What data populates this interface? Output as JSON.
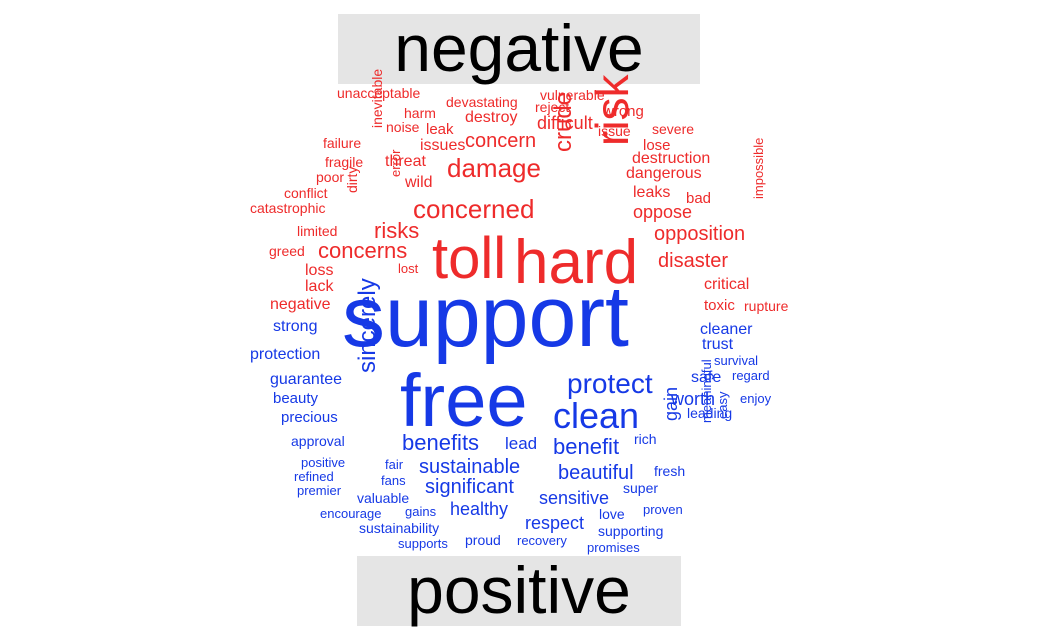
{
  "chart_data": {
    "type": "wordcloud",
    "colors": {
      "negative": "#ee2b2b",
      "positive": "#1639e6"
    },
    "groups": [
      {
        "name": "negative",
        "words": [
          {
            "text": "hard",
            "weight": 62
          },
          {
            "text": "toll",
            "weight": 58
          },
          {
            "text": "risk",
            "weight": 46
          },
          {
            "text": "concerned",
            "weight": 26
          },
          {
            "text": "damage",
            "weight": 26
          },
          {
            "text": "crude",
            "weight": 24
          },
          {
            "text": "concerns",
            "weight": 22
          },
          {
            "text": "risks",
            "weight": 22
          },
          {
            "text": "concern",
            "weight": 20
          },
          {
            "text": "opposition",
            "weight": 20
          },
          {
            "text": "disaster",
            "weight": 20
          },
          {
            "text": "difficult",
            "weight": 18
          },
          {
            "text": "oppose",
            "weight": 18
          },
          {
            "text": "destruction",
            "weight": 16
          },
          {
            "text": "leaks",
            "weight": 16
          },
          {
            "text": "threat",
            "weight": 16
          },
          {
            "text": "wild",
            "weight": 16
          },
          {
            "text": "issues",
            "weight": 16
          },
          {
            "text": "destroy",
            "weight": 16
          },
          {
            "text": "dangerous",
            "weight": 16
          },
          {
            "text": "critical",
            "weight": 16
          },
          {
            "text": "negative",
            "weight": 16
          },
          {
            "text": "loss",
            "weight": 16
          },
          {
            "text": "lack",
            "weight": 16
          },
          {
            "text": "leak",
            "weight": 15
          },
          {
            "text": "lose",
            "weight": 15
          },
          {
            "text": "bad",
            "weight": 15
          },
          {
            "text": "wrong",
            "weight": 15
          },
          {
            "text": "toxic",
            "weight": 15
          },
          {
            "text": "inevitable",
            "weight": 14
          },
          {
            "text": "devastating",
            "weight": 14
          },
          {
            "text": "vulnerable",
            "weight": 14
          },
          {
            "text": "reject",
            "weight": 14
          },
          {
            "text": "issue",
            "weight": 14
          },
          {
            "text": "harm",
            "weight": 14
          },
          {
            "text": "noise",
            "weight": 14
          },
          {
            "text": "dirty",
            "weight": 14
          },
          {
            "text": "error",
            "weight": 13
          },
          {
            "text": "failure",
            "weight": 14
          },
          {
            "text": "fragile",
            "weight": 14
          },
          {
            "text": "poor",
            "weight": 14
          },
          {
            "text": "conflict",
            "weight": 14
          },
          {
            "text": "catastrophic",
            "weight": 14
          },
          {
            "text": "limited",
            "weight": 14
          },
          {
            "text": "greed",
            "weight": 14
          },
          {
            "text": "lost",
            "weight": 13
          },
          {
            "text": "unacceptable",
            "weight": 14
          },
          {
            "text": "severe",
            "weight": 14
          },
          {
            "text": "impossible",
            "weight": 13
          },
          {
            "text": "rupture",
            "weight": 14
          }
        ]
      },
      {
        "name": "positive",
        "words": [
          {
            "text": "support",
            "weight": 86
          },
          {
            "text": "free",
            "weight": 74
          },
          {
            "text": "clean",
            "weight": 36
          },
          {
            "text": "protect",
            "weight": 28
          },
          {
            "text": "sincerely",
            "weight": 24
          },
          {
            "text": "benefits",
            "weight": 22
          },
          {
            "text": "benefit",
            "weight": 22
          },
          {
            "text": "sustainable",
            "weight": 20
          },
          {
            "text": "significant",
            "weight": 20
          },
          {
            "text": "beautiful",
            "weight": 20
          },
          {
            "text": "gain",
            "weight": 18
          },
          {
            "text": "sensitive",
            "weight": 18
          },
          {
            "text": "healthy",
            "weight": 18
          },
          {
            "text": "respect",
            "weight": 18
          },
          {
            "text": "worth",
            "weight": 18
          },
          {
            "text": "lead",
            "weight": 17
          },
          {
            "text": "strong",
            "weight": 16
          },
          {
            "text": "protection",
            "weight": 16
          },
          {
            "text": "guarantee",
            "weight": 16
          },
          {
            "text": "beauty",
            "weight": 15
          },
          {
            "text": "precious",
            "weight": 15
          },
          {
            "text": "cleaner",
            "weight": 16
          },
          {
            "text": "trust",
            "weight": 16
          },
          {
            "text": "safe",
            "weight": 16
          },
          {
            "text": "leading",
            "weight": 14
          },
          {
            "text": "approval",
            "weight": 14
          },
          {
            "text": "rich",
            "weight": 14
          },
          {
            "text": "survival",
            "weight": 13
          },
          {
            "text": "regard",
            "weight": 13
          },
          {
            "text": "enjoy",
            "weight": 13
          },
          {
            "text": "meaningful",
            "weight": 13
          },
          {
            "text": "easy",
            "weight": 13
          },
          {
            "text": "positive",
            "weight": 13
          },
          {
            "text": "refined",
            "weight": 13
          },
          {
            "text": "premier",
            "weight": 13
          },
          {
            "text": "fair",
            "weight": 13
          },
          {
            "text": "fans",
            "weight": 13
          },
          {
            "text": "valuable",
            "weight": 14
          },
          {
            "text": "fresh",
            "weight": 14
          },
          {
            "text": "super",
            "weight": 14
          },
          {
            "text": "encourage",
            "weight": 13
          },
          {
            "text": "gains",
            "weight": 13
          },
          {
            "text": "proven",
            "weight": 13
          },
          {
            "text": "love",
            "weight": 14
          },
          {
            "text": "sustainability",
            "weight": 14
          },
          {
            "text": "supporting",
            "weight": 14
          },
          {
            "text": "proud",
            "weight": 14
          },
          {
            "text": "supports",
            "weight": 13
          },
          {
            "text": "recovery",
            "weight": 13
          },
          {
            "text": "promises",
            "weight": 13
          }
        ]
      }
    ]
  }
}
